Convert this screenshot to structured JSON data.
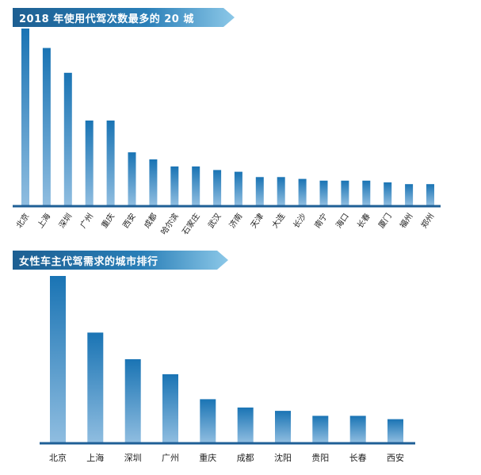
{
  "colors": {
    "bar_top": "#1a74b4",
    "bar_bottom": "#8fbde0",
    "axis": "#1f5f96",
    "banner_dark": "#1d5f92",
    "banner_light": "#7fc0e4",
    "label": "#222222"
  },
  "chart_data": [
    {
      "type": "bar",
      "title": "2018 年使用代驾次数最多的 20 城",
      "categories": [
        "北京",
        "上海",
        "深圳",
        "广州",
        "重庆",
        "西安",
        "成都",
        "哈尔滨",
        "石家庄",
        "武汉",
        "济南",
        "天津",
        "大连",
        "长沙",
        "南宁",
        "海口",
        "长春",
        "厦门",
        "福州",
        "郑州"
      ],
      "values": [
        100,
        89,
        75,
        48,
        48,
        30,
        26,
        22,
        22,
        20,
        19,
        16,
        16,
        15,
        14,
        14,
        14,
        13,
        12,
        12
      ],
      "ylim": [
        0,
        100
      ],
      "xlabel": "",
      "ylabel": "",
      "grid": false,
      "legend": "none"
    },
    {
      "type": "bar",
      "title": "女性车主代驾需求的城市排行",
      "categories": [
        "北京",
        "上海",
        "深圳",
        "广州",
        "重庆",
        "成都",
        "沈阳",
        "贵阳",
        "长春",
        "西安"
      ],
      "values": [
        100,
        66,
        50,
        41,
        26,
        21,
        19,
        16,
        16,
        14
      ],
      "ylim": [
        0,
        100
      ],
      "xlabel": "",
      "ylabel": "",
      "grid": false,
      "legend": "none"
    }
  ]
}
